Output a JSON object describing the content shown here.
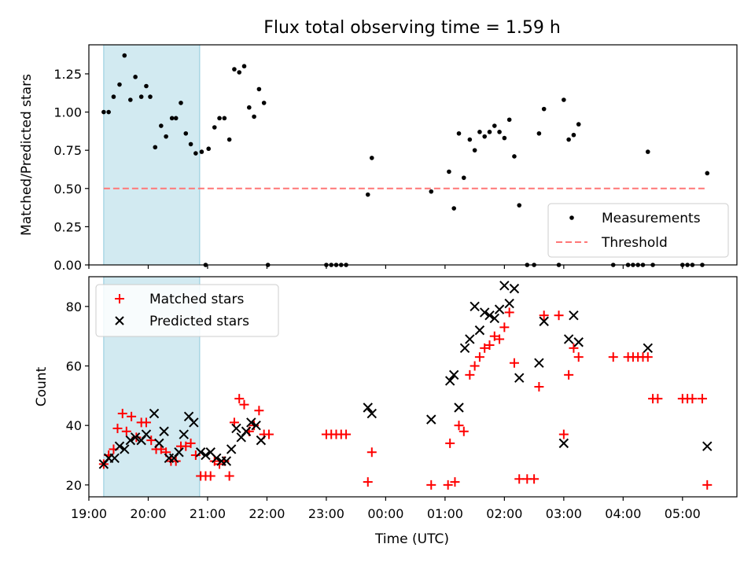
{
  "title": "Flux total observing time = 1.59 h",
  "chart_data": [
    {
      "type": "scatter",
      "ylabel": "Matched/Predicted stars",
      "xlabel": "",
      "xlim": [
        "19:00",
        "05:55"
      ],
      "ylim": [
        0,
        1.44
      ],
      "yticks": [
        "0.00",
        "0.25",
        "0.50",
        "0.75",
        "1.00",
        "1.25"
      ],
      "shaded_span": [
        "19:15",
        "20:52"
      ],
      "legend_position": "lower-right",
      "series": [
        {
          "name": "Measurements",
          "color": "#000000",
          "points": [
            [
              "19:15",
              1.0
            ],
            [
              "19:20",
              1.0
            ],
            [
              "19:25",
              1.1
            ],
            [
              "19:31",
              1.18
            ],
            [
              "19:36",
              1.37
            ],
            [
              "19:42",
              1.08
            ],
            [
              "19:47",
              1.23
            ],
            [
              "19:53",
              1.1
            ],
            [
              "19:58",
              1.17
            ],
            [
              "20:02",
              1.1
            ],
            [
              "20:07",
              0.77
            ],
            [
              "20:13",
              0.91
            ],
            [
              "20:18",
              0.84
            ],
            [
              "20:24",
              0.96
            ],
            [
              "20:28",
              0.96
            ],
            [
              "20:33",
              1.06
            ],
            [
              "20:38",
              0.86
            ],
            [
              "20:43",
              0.79
            ],
            [
              "20:48",
              0.73
            ],
            [
              "20:54",
              0.74
            ],
            [
              "20:58",
              0.0
            ],
            [
              "21:01",
              0.76
            ],
            [
              "21:07",
              0.9
            ],
            [
              "21:12",
              0.96
            ],
            [
              "21:17",
              0.96
            ],
            [
              "21:22",
              0.82
            ],
            [
              "21:27",
              1.28
            ],
            [
              "21:32",
              1.26
            ],
            [
              "21:37",
              1.3
            ],
            [
              "21:42",
              1.03
            ],
            [
              "21:47",
              0.97
            ],
            [
              "21:52",
              1.15
            ],
            [
              "21:57",
              1.06
            ],
            [
              "22:01",
              0.0
            ],
            [
              "23:00",
              0.0
            ],
            [
              "23:05",
              0.0
            ],
            [
              "23:10",
              0.0
            ],
            [
              "23:15",
              0.0
            ],
            [
              "23:20",
              0.0
            ],
            [
              "23:42",
              0.46
            ],
            [
              "23:46",
              0.7
            ],
            [
              "00:46",
              0.48
            ],
            [
              "01:04",
              0.61
            ],
            [
              "01:09",
              0.37
            ],
            [
              "01:14",
              0.86
            ],
            [
              "01:19",
              0.57
            ],
            [
              "01:25",
              0.82
            ],
            [
              "01:30",
              0.75
            ],
            [
              "01:35",
              0.87
            ],
            [
              "01:40",
              0.84
            ],
            [
              "01:45",
              0.87
            ],
            [
              "01:50",
              0.91
            ],
            [
              "01:55",
              0.87
            ],
            [
              "02:00",
              0.83
            ],
            [
              "02:05",
              0.95
            ],
            [
              "02:10",
              0.71
            ],
            [
              "02:15",
              0.39
            ],
            [
              "02:23",
              0.0
            ],
            [
              "02:30",
              0.0
            ],
            [
              "02:35",
              0.86
            ],
            [
              "02:40",
              1.02
            ],
            [
              "02:55",
              0.0
            ],
            [
              "03:00",
              1.08
            ],
            [
              "03:05",
              0.82
            ],
            [
              "03:10",
              0.85
            ],
            [
              "03:15",
              0.92
            ],
            [
              "03:50",
              0.0
            ],
            [
              "04:05",
              0.0
            ],
            [
              "04:10",
              0.0
            ],
            [
              "04:15",
              0.0
            ],
            [
              "04:20",
              0.0
            ],
            [
              "04:25",
              0.74
            ],
            [
              "04:30",
              0.0
            ],
            [
              "05:00",
              0.0
            ],
            [
              "05:05",
              0.0
            ],
            [
              "05:10",
              0.0
            ],
            [
              "05:20",
              0.0
            ],
            [
              "05:25",
              0.6
            ]
          ]
        },
        {
          "name": "Threshold",
          "color": "#ff7777",
          "style": "dashed",
          "points": [
            [
              "19:15",
              0.5
            ],
            [
              "05:25",
              0.5
            ]
          ]
        }
      ]
    },
    {
      "type": "scatter",
      "ylabel": "Count",
      "xlabel": "Time (UTC)",
      "xlim": [
        "19:00",
        "05:55"
      ],
      "ylim": [
        16,
        90
      ],
      "yticks": [
        "20",
        "40",
        "60",
        "80"
      ],
      "xticks": [
        "19:00",
        "20:00",
        "21:00",
        "22:00",
        "23:00",
        "00:00",
        "01:00",
        "02:00",
        "03:00",
        "04:00",
        "05:00"
      ],
      "shaded_span": [
        "19:15",
        "20:52"
      ],
      "legend_position": "upper-left",
      "series": [
        {
          "name": "Matched stars",
          "color": "#ff0000",
          "marker": "plus",
          "points": [
            [
              "19:15",
              27
            ],
            [
              "19:20",
              30
            ],
            [
              "19:25",
              32
            ],
            [
              "19:29",
              39
            ],
            [
              "19:34",
              44
            ],
            [
              "19:38",
              38
            ],
            [
              "19:43",
              43
            ],
            [
              "19:48",
              36
            ],
            [
              "19:53",
              41
            ],
            [
              "19:58",
              41
            ],
            [
              "20:03",
              35
            ],
            [
              "20:08",
              32
            ],
            [
              "20:13",
              32
            ],
            [
              "20:18",
              31
            ],
            [
              "20:23",
              28
            ],
            [
              "20:28",
              28
            ],
            [
              "20:33",
              33
            ],
            [
              "20:38",
              33
            ],
            [
              "20:43",
              34
            ],
            [
              "20:48",
              30
            ],
            [
              "20:53",
              23
            ],
            [
              "20:58",
              23
            ],
            [
              "21:03",
              23
            ],
            [
              "21:07",
              28
            ],
            [
              "21:12",
              27
            ],
            [
              "21:17",
              28
            ],
            [
              "21:22",
              23
            ],
            [
              "21:27",
              41
            ],
            [
              "21:32",
              49
            ],
            [
              "21:37",
              47
            ],
            [
              "21:42",
              38
            ],
            [
              "21:47",
              40
            ],
            [
              "21:52",
              45
            ],
            [
              "21:57",
              37
            ],
            [
              "22:02",
              37
            ],
            [
              "23:00",
              37
            ],
            [
              "23:05",
              37
            ],
            [
              "23:10",
              37
            ],
            [
              "23:15",
              37
            ],
            [
              "23:20",
              37
            ],
            [
              "23:42",
              21
            ],
            [
              "23:46",
              31
            ],
            [
              "00:46",
              20
            ],
            [
              "01:03",
              20
            ],
            [
              "01:05",
              34
            ],
            [
              "01:10",
              21
            ],
            [
              "01:14",
              40
            ],
            [
              "01:19",
              38
            ],
            [
              "01:25",
              57
            ],
            [
              "01:30",
              60
            ],
            [
              "01:35",
              63
            ],
            [
              "01:40",
              66
            ],
            [
              "01:45",
              67
            ],
            [
              "01:50",
              70
            ],
            [
              "01:55",
              69
            ],
            [
              "02:00",
              73
            ],
            [
              "02:05",
              78
            ],
            [
              "02:10",
              61
            ],
            [
              "02:15",
              22
            ],
            [
              "02:23",
              22
            ],
            [
              "02:30",
              22
            ],
            [
              "02:35",
              53
            ],
            [
              "02:40",
              77
            ],
            [
              "02:55",
              77
            ],
            [
              "03:00",
              37
            ],
            [
              "03:05",
              57
            ],
            [
              "03:10",
              66
            ],
            [
              "03:15",
              63
            ],
            [
              "03:50",
              63
            ],
            [
              "04:05",
              63
            ],
            [
              "04:10",
              63
            ],
            [
              "04:15",
              63
            ],
            [
              "04:20",
              63
            ],
            [
              "04:25",
              63
            ],
            [
              "04:30",
              49
            ],
            [
              "04:35",
              49
            ],
            [
              "05:00",
              49
            ],
            [
              "05:05",
              49
            ],
            [
              "05:10",
              49
            ],
            [
              "05:20",
              49
            ],
            [
              "05:25",
              20
            ]
          ]
        },
        {
          "name": "Predicted stars",
          "color": "#000000",
          "marker": "x",
          "points": [
            [
              "19:15",
              27
            ],
            [
              "19:20",
              29
            ],
            [
              "19:26",
              29
            ],
            [
              "19:31",
              33
            ],
            [
              "19:36",
              32
            ],
            [
              "19:42",
              35
            ],
            [
              "19:47",
              36
            ],
            [
              "19:53",
              35
            ],
            [
              "19:58",
              37
            ],
            [
              "20:06",
              44
            ],
            [
              "20:11",
              34
            ],
            [
              "20:16",
              38
            ],
            [
              "20:21",
              29
            ],
            [
              "20:26",
              29
            ],
            [
              "20:31",
              31
            ],
            [
              "20:36",
              37
            ],
            [
              "20:41",
              43
            ],
            [
              "20:46",
              41
            ],
            [
              "20:53",
              31
            ],
            [
              "20:58",
              30
            ],
            [
              "21:03",
              31
            ],
            [
              "21:09",
              29
            ],
            [
              "21:14",
              28
            ],
            [
              "21:19",
              28
            ],
            [
              "21:24",
              32
            ],
            [
              "21:29",
              39
            ],
            [
              "21:34",
              36
            ],
            [
              "21:39",
              38
            ],
            [
              "21:44",
              41
            ],
            [
              "21:49",
              40
            ],
            [
              "21:54",
              35
            ],
            [
              "23:42",
              46
            ],
            [
              "23:46",
              44
            ],
            [
              "00:46",
              42
            ],
            [
              "01:05",
              55
            ],
            [
              "01:09",
              57
            ],
            [
              "01:14",
              46
            ],
            [
              "01:20",
              66
            ],
            [
              "01:25",
              69
            ],
            [
              "01:30",
              80
            ],
            [
              "01:35",
              72
            ],
            [
              "01:40",
              78
            ],
            [
              "01:45",
              77
            ],
            [
              "01:50",
              76
            ],
            [
              "01:55",
              79
            ],
            [
              "02:00",
              87
            ],
            [
              "02:05",
              81
            ],
            [
              "02:10",
              86
            ],
            [
              "02:15",
              56
            ],
            [
              "02:35",
              61
            ],
            [
              "02:40",
              75
            ],
            [
              "03:00",
              34
            ],
            [
              "03:05",
              69
            ],
            [
              "03:10",
              77
            ],
            [
              "03:15",
              68
            ],
            [
              "04:25",
              66
            ],
            [
              "05:25",
              33
            ]
          ]
        }
      ]
    }
  ]
}
